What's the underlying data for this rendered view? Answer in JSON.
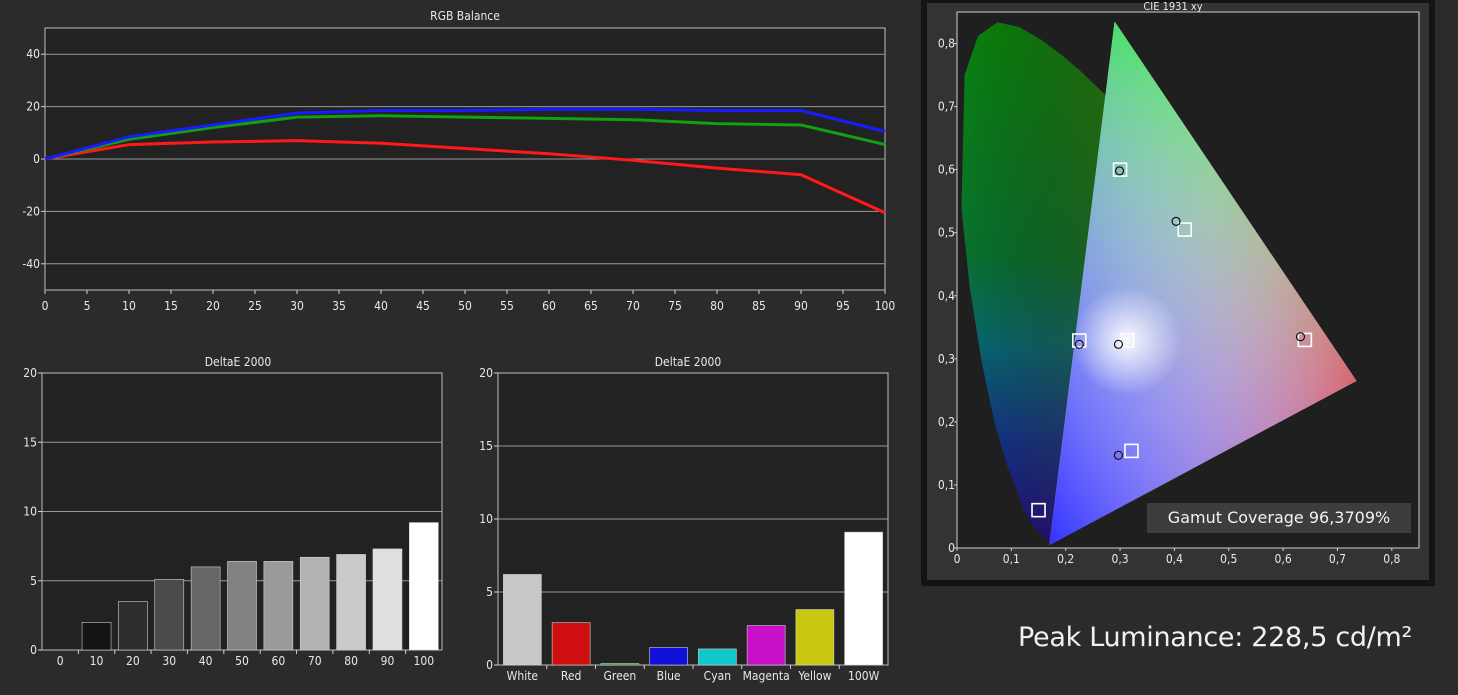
{
  "peak_luminance": "Peak Luminance: 228,5 cd/m²",
  "gamut_coverage": "Gamut Coverage 96,3709%",
  "colors": {
    "background": "#2b2b2b",
    "plot": "#222222",
    "grid": "#9a9a9a"
  },
  "chart_data": [
    {
      "type": "line",
      "title": "RGB Balance",
      "x": [
        0,
        10,
        20,
        30,
        40,
        50,
        60,
        70,
        80,
        90,
        100
      ],
      "xticks": [
        "0",
        "5",
        "10",
        "15",
        "20",
        "25",
        "30",
        "35",
        "40",
        "45",
        "50",
        "55",
        "60",
        "65",
        "70",
        "75",
        "80",
        "85",
        "90",
        "95",
        "100"
      ],
      "xlim": [
        0,
        100
      ],
      "ylim": [
        -50,
        50
      ],
      "yticks": [
        "40",
        "20",
        "0",
        "-20",
        "-40"
      ],
      "series": [
        {
          "color": "#ff1a1a",
          "values": [
            0,
            5.5,
            6.5,
            7,
            6,
            4,
            2,
            -0.5,
            -3.5,
            -6,
            -20.5
          ]
        },
        {
          "color": "#10a010",
          "values": [
            0,
            7.5,
            12,
            16,
            16.5,
            16,
            15.5,
            15,
            13.5,
            13,
            5.5
          ]
        },
        {
          "color": "#1a1aff",
          "values": [
            0,
            8.5,
            13,
            17.5,
            18.5,
            18.5,
            19,
            19,
            18.5,
            18.5,
            10.5
          ]
        }
      ],
      "grid": true
    },
    {
      "type": "bar",
      "title": "DeltaE 2000",
      "categories": [
        "0",
        "10",
        "20",
        "30",
        "40",
        "50",
        "60",
        "70",
        "80",
        "90",
        "100"
      ],
      "values": [
        0,
        2,
        3.5,
        5.1,
        6,
        6.4,
        6.4,
        6.7,
        6.9,
        7.3,
        9.2
      ],
      "colors": [
        "#000000",
        "#141414",
        "#2e2e2e",
        "#4a4a4a",
        "#666666",
        "#828282",
        "#9a9a9a",
        "#b2b2b2",
        "#cacaca",
        "#e0e0e0",
        "#ffffff"
      ],
      "ylim": [
        0,
        20
      ],
      "yticks": [
        "20",
        "15",
        "10",
        "5",
        "0"
      ]
    },
    {
      "type": "bar",
      "title": "DeltaE 2000",
      "categories": [
        "White",
        "Red",
        "Green",
        "Blue",
        "Cyan",
        "Magenta",
        "Yellow",
        "100W"
      ],
      "values": [
        6.2,
        2.9,
        0.1,
        1.2,
        1.1,
        2.7,
        3.8,
        9.1
      ],
      "colors": [
        "#c8c8c8",
        "#d01010",
        "#20a020",
        "#1010d8",
        "#10c8c8",
        "#c810c8",
        "#c8c810",
        "#ffffff"
      ],
      "ylim": [
        0,
        20
      ],
      "yticks": [
        "20",
        "15",
        "10",
        "5",
        "0"
      ]
    },
    {
      "type": "scatter",
      "title": "CIE 1931 xy",
      "xlim": [
        0,
        0.85
      ],
      "ylim": [
        0,
        0.85
      ],
      "xticks": [
        "0",
        "0,1",
        "0,2",
        "0,3",
        "0,4",
        "0,5",
        "0,6",
        "0,7",
        "0,8"
      ],
      "yticks": [
        "0,8",
        "0,7",
        "0,6",
        "0,5",
        "0,4",
        "0,3",
        "0,2",
        "0,1",
        "0"
      ],
      "gamut_triangle": {
        "red": [
          0.735,
          0.265
        ],
        "green": [
          0.29,
          0.835
        ],
        "blue": [
          0.17,
          0.005
        ]
      },
      "targets": [
        [
          0.64,
          0.33
        ],
        [
          0.3,
          0.6
        ],
        [
          0.15,
          0.06
        ],
        [
          0.225,
          0.329
        ],
        [
          0.321,
          0.154
        ],
        [
          0.419,
          0.505
        ],
        [
          0.3127,
          0.329
        ]
      ],
      "measured": [
        [
          0.632,
          0.335
        ],
        [
          0.299,
          0.598
        ],
        [
          0.225,
          0.323
        ],
        [
          0.297,
          0.147
        ],
        [
          0.403,
          0.518
        ],
        [
          0.297,
          0.323
        ]
      ],
      "grid": false
    }
  ]
}
